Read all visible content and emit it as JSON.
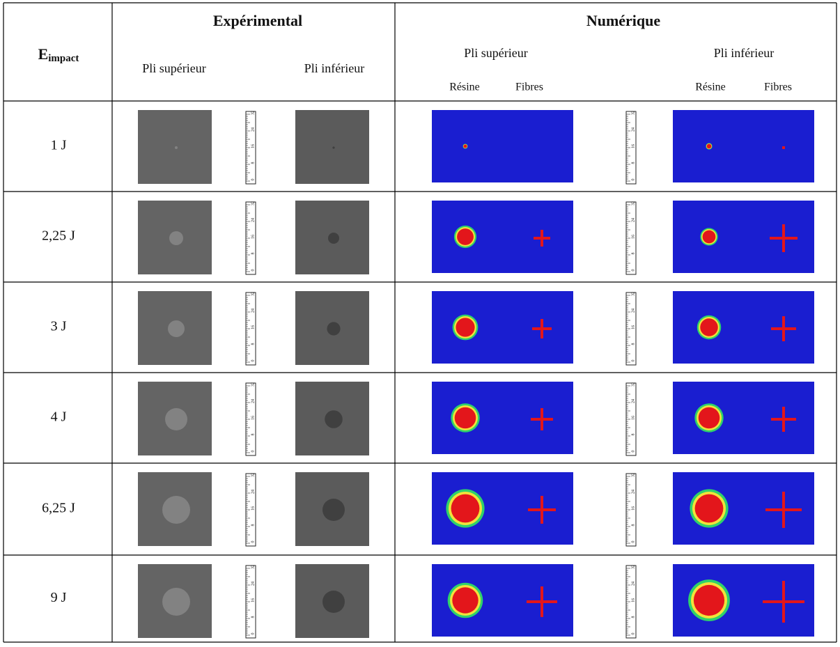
{
  "header": {
    "experimental": "Expérimental",
    "numerique": "Numérique",
    "energy": "E",
    "energy_sub": "impact",
    "exp_columns": [
      "Pli supérieur",
      "Pli inférieur"
    ],
    "num_columns": [
      {
        "label": "Pli supérieur",
        "sub": [
          "Résine",
          "Fibres"
        ]
      },
      {
        "label": "Pli inférieur",
        "sub": [
          "Résine",
          "Fibres"
        ]
      }
    ]
  },
  "rows": [
    "1 J",
    "2,25 J",
    "3 J",
    "4 J",
    "6,25 J",
    "9 J"
  ],
  "ruler": {
    "labels": [
      "0",
      "8",
      "16",
      "24",
      "32"
    ]
  }
}
